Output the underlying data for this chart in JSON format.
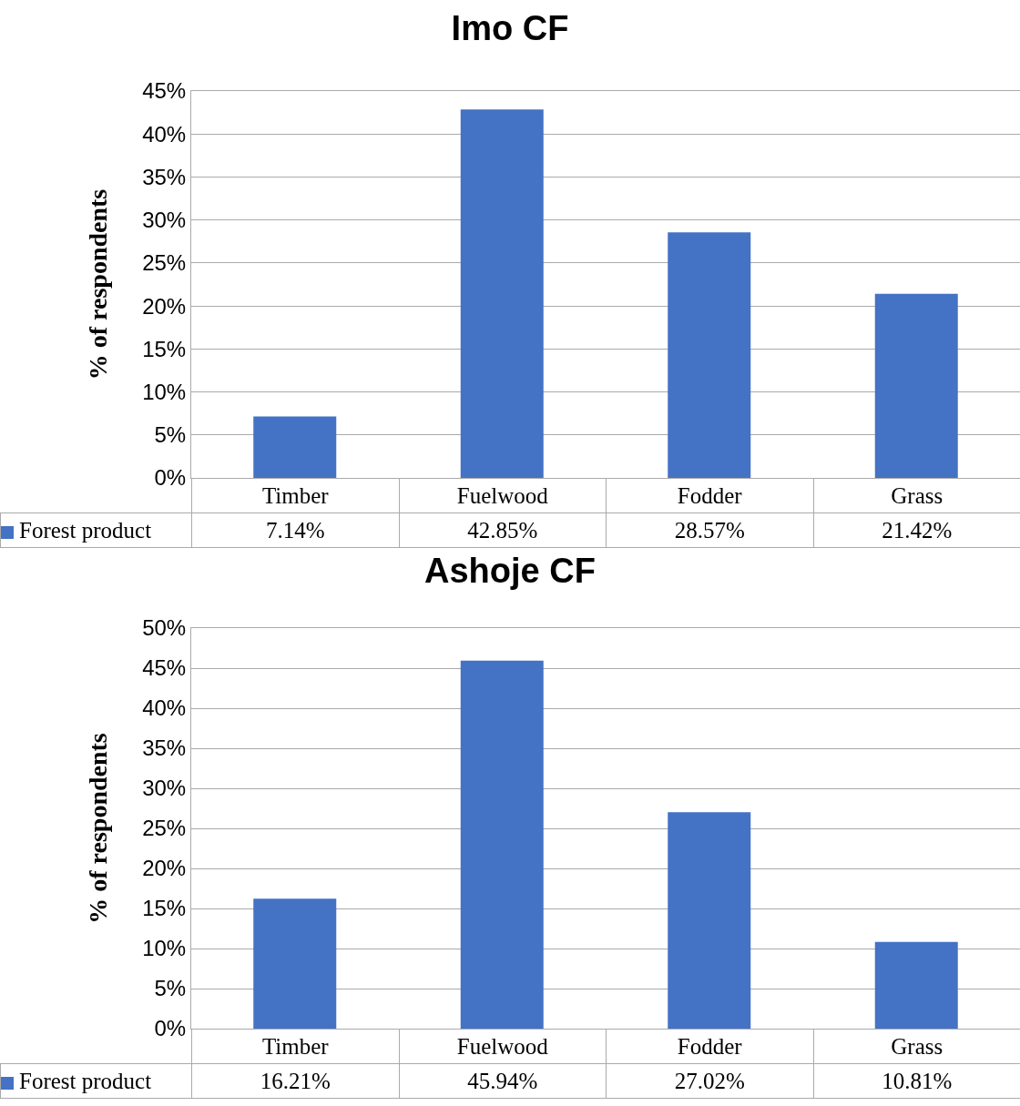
{
  "chart_data": [
    {
      "type": "bar",
      "title": "Imo CF",
      "ylabel": "% of respondents",
      "categories": [
        "Timber",
        "Fuelwood",
        "Fodder",
        "Grass"
      ],
      "series": [
        {
          "name": "Forest product",
          "color": "#4472c4",
          "values": [
            7.14,
            42.85,
            28.57,
            21.42
          ],
          "value_labels": [
            "7.14%",
            "42.85%",
            "28.57%",
            "21.42%"
          ]
        }
      ],
      "ylim": [
        0,
        45
      ],
      "yticks": [
        {
          "value": 0,
          "label": "0%"
        },
        {
          "value": 5,
          "label": "5%"
        },
        {
          "value": 10,
          "label": "10%"
        },
        {
          "value": 15,
          "label": "15%"
        },
        {
          "value": 20,
          "label": "20%"
        },
        {
          "value": 25,
          "label": "25%"
        },
        {
          "value": 30,
          "label": "30%"
        },
        {
          "value": 35,
          "label": "35%"
        },
        {
          "value": 40,
          "label": "40%"
        },
        {
          "value": 45,
          "label": "45%"
        }
      ],
      "grid": "y",
      "legend": "bottom left"
    },
    {
      "type": "bar",
      "title": "Ashoje CF",
      "ylabel": "% of respondents",
      "categories": [
        "Timber",
        "Fuelwood",
        "Fodder",
        "Grass"
      ],
      "series": [
        {
          "name": "Forest product",
          "color": "#4472c4",
          "values": [
            16.21,
            45.94,
            27.02,
            10.81
          ],
          "value_labels": [
            "16.21%",
            "45.94%",
            "27.02%",
            "10.81%"
          ]
        }
      ],
      "ylim": [
        0,
        50
      ],
      "yticks": [
        {
          "value": 0,
          "label": "0%"
        },
        {
          "value": 5,
          "label": "5%"
        },
        {
          "value": 10,
          "label": "10%"
        },
        {
          "value": 15,
          "label": "15%"
        },
        {
          "value": 20,
          "label": "20%"
        },
        {
          "value": 25,
          "label": "25%"
        },
        {
          "value": 30,
          "label": "30%"
        },
        {
          "value": 35,
          "label": "35%"
        },
        {
          "value": 40,
          "label": "40%"
        },
        {
          "value": 45,
          "label": "45%"
        },
        {
          "value": 50,
          "label": "50%"
        }
      ],
      "grid": "y",
      "legend": "bottom left"
    }
  ]
}
